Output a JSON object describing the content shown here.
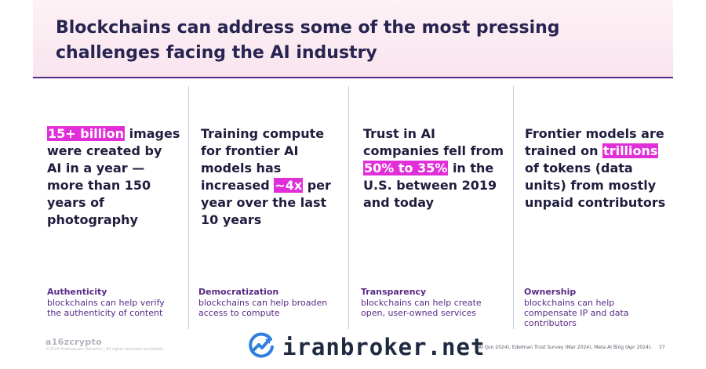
{
  "title": "Blockchains can address some of the most pressing challenges facing the AI industry",
  "columns": [
    {
      "stat_pre": "",
      "stat_hl": "15+ billion",
      "stat_post": " images were created by AI in a year — more than 150 years of photography",
      "category": "Authenticity",
      "description": "blockchains can help verify the authenticity of content"
    },
    {
      "stat_pre": "Training compute for frontier AI models has increased ",
      "stat_hl": "~4x",
      "stat_post": " per year over the last 10 years",
      "category": "Democratization",
      "description": "blockchains can help broaden access to compute"
    },
    {
      "stat_pre": "Trust in AI companies fell from ",
      "stat_hl": "50% to 35%",
      "stat_post": " in the U.S. between 2019 and today",
      "category": "Transparency",
      "description": "blockchains can help create open, user-owned services"
    },
    {
      "stat_pre": "Frontier models are trained on ",
      "stat_hl": "trillions",
      "stat_post": " of tokens (data units) from mostly unpaid contributors",
      "category": "Ownership",
      "description": "blockchains can help compensate IP and data contributors"
    }
  ],
  "footer": {
    "brand": "a16zcrypto",
    "copyright": "©2024 Andreessen Horowitz | All rights reserved worldwide.",
    "watermark": "iranbroker.net",
    "sources": "AI (Jun 2024), Edelman Trust Survey (Mar 2024), Meta AI Blog (Apr 2024).",
    "page_number": "37"
  },
  "colors": {
    "highlight": "#e02fd9",
    "accent": "#5a2a86",
    "title": "#262450"
  },
  "icons": [
    "trend-up-logo-icon"
  ]
}
